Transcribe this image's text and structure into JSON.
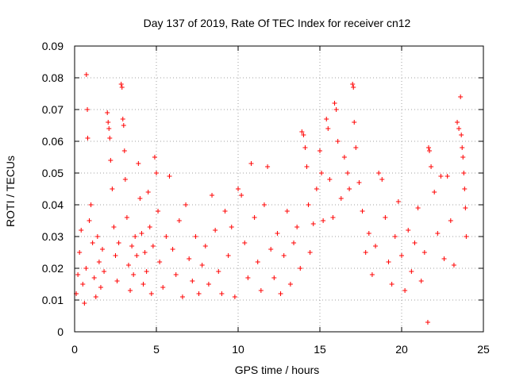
{
  "chart_data": {
    "type": "scatter",
    "title": "Day 137 of 2019, Rate Of TEC Index for receiver cn12",
    "xlabel": "GPS time / hours",
    "ylabel": "ROTI / TECUs",
    "xlim": [
      0,
      25
    ],
    "ylim": [
      0,
      0.09
    ],
    "xticks": [
      0,
      5,
      10,
      15,
      20,
      25
    ],
    "xtick_labels": [
      "0",
      "5",
      "10",
      "15",
      "20",
      "25"
    ],
    "yticks": [
      0,
      0.01,
      0.02,
      0.03,
      0.04,
      0.05,
      0.06,
      0.07,
      0.08,
      0.09
    ],
    "ytick_labels": [
      "0",
      "0.01",
      "0.02",
      "0.03",
      "0.04",
      "0.05",
      "0.06",
      "0.07",
      "0.08",
      "0.09"
    ],
    "grid": true,
    "marker": "+",
    "color": "#ff0000",
    "series": [
      {
        "name": "ROTI",
        "points": [
          [
            0.1,
            0.012
          ],
          [
            0.2,
            0.018
          ],
          [
            0.3,
            0.025
          ],
          [
            0.4,
            0.032
          ],
          [
            0.5,
            0.015
          ],
          [
            0.6,
            0.009
          ],
          [
            0.7,
            0.02
          ],
          [
            0.72,
            0.081
          ],
          [
            0.78,
            0.07
          ],
          [
            0.8,
            0.061
          ],
          [
            0.9,
            0.035
          ],
          [
            1.0,
            0.04
          ],
          [
            1.1,
            0.028
          ],
          [
            1.2,
            0.017
          ],
          [
            1.3,
            0.011
          ],
          [
            1.4,
            0.03
          ],
          [
            1.5,
            0.022
          ],
          [
            1.6,
            0.014
          ],
          [
            1.7,
            0.026
          ],
          [
            1.8,
            0.019
          ],
          [
            2.0,
            0.069
          ],
          [
            2.05,
            0.066
          ],
          [
            2.1,
            0.064
          ],
          [
            2.15,
            0.061
          ],
          [
            2.2,
            0.054
          ],
          [
            2.3,
            0.045
          ],
          [
            2.4,
            0.033
          ],
          [
            2.5,
            0.024
          ],
          [
            2.6,
            0.016
          ],
          [
            2.7,
            0.028
          ],
          [
            2.85,
            0.078
          ],
          [
            2.9,
            0.077
          ],
          [
            2.95,
            0.067
          ],
          [
            3.0,
            0.065
          ],
          [
            3.05,
            0.057
          ],
          [
            3.1,
            0.048
          ],
          [
            3.2,
            0.036
          ],
          [
            3.3,
            0.021
          ],
          [
            3.4,
            0.013
          ],
          [
            3.5,
            0.027
          ],
          [
            3.6,
            0.018
          ],
          [
            3.7,
            0.03
          ],
          [
            3.8,
            0.024
          ],
          [
            3.9,
            0.053
          ],
          [
            4.0,
            0.042
          ],
          [
            4.1,
            0.031
          ],
          [
            4.2,
            0.015
          ],
          [
            4.3,
            0.025
          ],
          [
            4.4,
            0.019
          ],
          [
            4.5,
            0.044
          ],
          [
            4.6,
            0.033
          ],
          [
            4.7,
            0.012
          ],
          [
            4.8,
            0.027
          ],
          [
            4.9,
            0.055
          ],
          [
            5.0,
            0.05
          ],
          [
            5.1,
            0.038
          ],
          [
            5.2,
            0.022
          ],
          [
            5.4,
            0.014
          ],
          [
            5.6,
            0.03
          ],
          [
            5.8,
            0.049
          ],
          [
            6.0,
            0.026
          ],
          [
            6.2,
            0.018
          ],
          [
            6.4,
            0.035
          ],
          [
            6.6,
            0.011
          ],
          [
            6.8,
            0.04
          ],
          [
            7.0,
            0.023
          ],
          [
            7.2,
            0.016
          ],
          [
            7.4,
            0.03
          ],
          [
            7.6,
            0.012
          ],
          [
            7.8,
            0.021
          ],
          [
            8.0,
            0.027
          ],
          [
            8.2,
            0.015
          ],
          [
            8.4,
            0.043
          ],
          [
            8.6,
            0.032
          ],
          [
            8.8,
            0.019
          ],
          [
            9.0,
            0.012
          ],
          [
            9.2,
            0.038
          ],
          [
            9.4,
            0.024
          ],
          [
            9.6,
            0.033
          ],
          [
            9.8,
            0.011
          ],
          [
            10.0,
            0.045
          ],
          [
            10.2,
            0.043
          ],
          [
            10.4,
            0.028
          ],
          [
            10.6,
            0.017
          ],
          [
            10.8,
            0.053
          ],
          [
            11.0,
            0.036
          ],
          [
            11.2,
            0.022
          ],
          [
            11.4,
            0.013
          ],
          [
            11.6,
            0.04
          ],
          [
            11.8,
            0.052
          ],
          [
            12.0,
            0.026
          ],
          [
            12.2,
            0.017
          ],
          [
            12.4,
            0.031
          ],
          [
            12.6,
            0.012
          ],
          [
            12.8,
            0.024
          ],
          [
            13.0,
            0.038
          ],
          [
            13.2,
            0.015
          ],
          [
            13.4,
            0.028
          ],
          [
            13.6,
            0.033
          ],
          [
            13.8,
            0.02
          ],
          [
            13.9,
            0.063
          ],
          [
            14.0,
            0.062
          ],
          [
            14.1,
            0.058
          ],
          [
            14.2,
            0.052
          ],
          [
            14.3,
            0.04
          ],
          [
            14.4,
            0.025
          ],
          [
            14.6,
            0.034
          ],
          [
            14.8,
            0.045
          ],
          [
            15.0,
            0.057
          ],
          [
            15.1,
            0.05
          ],
          [
            15.2,
            0.035
          ],
          [
            15.4,
            0.067
          ],
          [
            15.5,
            0.064
          ],
          [
            15.6,
            0.048
          ],
          [
            15.8,
            0.036
          ],
          [
            15.9,
            0.072
          ],
          [
            16.0,
            0.07
          ],
          [
            16.1,
            0.06
          ],
          [
            16.3,
            0.042
          ],
          [
            16.5,
            0.055
          ],
          [
            16.7,
            0.05
          ],
          [
            16.8,
            0.045
          ],
          [
            17.0,
            0.078
          ],
          [
            17.05,
            0.077
          ],
          [
            17.1,
            0.066
          ],
          [
            17.2,
            0.058
          ],
          [
            17.4,
            0.047
          ],
          [
            17.6,
            0.038
          ],
          [
            17.8,
            0.025
          ],
          [
            18.0,
            0.031
          ],
          [
            18.2,
            0.018
          ],
          [
            18.4,
            0.027
          ],
          [
            18.6,
            0.05
          ],
          [
            18.8,
            0.048
          ],
          [
            19.0,
            0.036
          ],
          [
            19.2,
            0.022
          ],
          [
            19.4,
            0.015
          ],
          [
            19.6,
            0.03
          ],
          [
            19.8,
            0.041
          ],
          [
            20.0,
            0.024
          ],
          [
            20.2,
            0.013
          ],
          [
            20.4,
            0.032
          ],
          [
            20.6,
            0.019
          ],
          [
            20.8,
            0.028
          ],
          [
            21.0,
            0.039
          ],
          [
            21.2,
            0.016
          ],
          [
            21.4,
            0.025
          ],
          [
            21.6,
            0.003
          ],
          [
            21.65,
            0.058
          ],
          [
            21.7,
            0.057
          ],
          [
            21.8,
            0.052
          ],
          [
            22.0,
            0.044
          ],
          [
            22.2,
            0.031
          ],
          [
            22.4,
            0.049
          ],
          [
            22.6,
            0.023
          ],
          [
            22.8,
            0.049
          ],
          [
            23.0,
            0.035
          ],
          [
            23.2,
            0.021
          ],
          [
            23.4,
            0.066
          ],
          [
            23.5,
            0.064
          ],
          [
            23.6,
            0.074
          ],
          [
            23.65,
            0.062
          ],
          [
            23.7,
            0.058
          ],
          [
            23.75,
            0.055
          ],
          [
            23.8,
            0.05
          ],
          [
            23.85,
            0.045
          ],
          [
            23.9,
            0.039
          ],
          [
            23.95,
            0.03
          ]
        ]
      }
    ]
  }
}
